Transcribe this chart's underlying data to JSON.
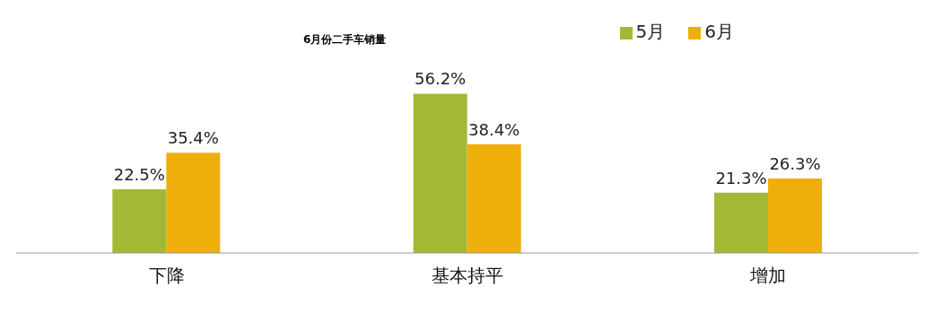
{
  "chart_data": {
    "type": "bar",
    "title": "6月份二手车销量",
    "categories": [
      "下降",
      "基本持平",
      "增加"
    ],
    "series": [
      {
        "name": "5月",
        "color": "#a2b935",
        "values": [
          22.5,
          56.2,
          21.3
        ],
        "value_labels": [
          "22.5%",
          "56.2%",
          "21.3%"
        ]
      },
      {
        "name": "6月",
        "color": "#efaf0b",
        "values": [
          35.4,
          38.4,
          26.3
        ],
        "value_labels": [
          "35.4%",
          "38.4%",
          "26.3%"
        ]
      }
    ],
    "legend": "top right",
    "grid": false
  }
}
